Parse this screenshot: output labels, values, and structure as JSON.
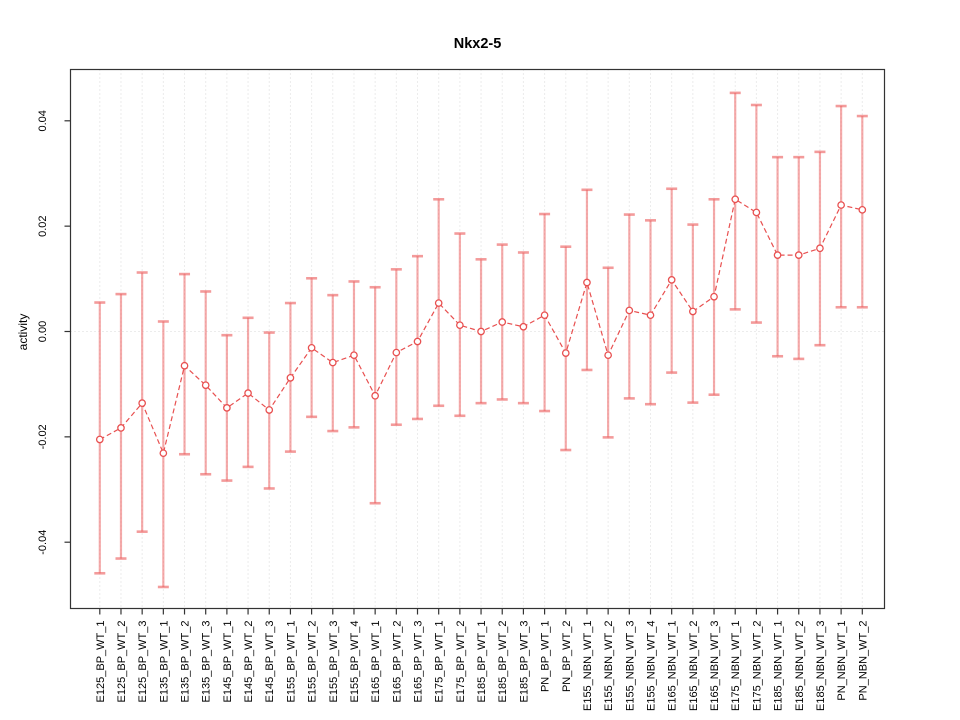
{
  "chart_data": {
    "type": "line",
    "subtype": "means-with-error-bars",
    "title": "Nkx2-5",
    "xlabel": "",
    "ylabel": "activity",
    "ylim": [
      -0.053,
      0.05
    ],
    "yticks": {
      "values": [
        -0.04,
        -0.02,
        0,
        0.02,
        0.04
      ],
      "labels": [
        "-0.04",
        "-0.02",
        "0.00",
        "0.02",
        "0.04"
      ]
    },
    "layout_hints": {
      "legend_position": "none",
      "grid_vertical": "dotted line at every category",
      "grid_horizontal": "dotted line at zero only",
      "x_tick_label_rotation_deg": 90,
      "y_tick_label_rotation_deg": 90,
      "connector_line_style": "dashed",
      "point_marker": "open-circle"
    },
    "categories": [
      "E125_BP_WT_1",
      "E125_BP_WT_2",
      "E125_BP_WT_3",
      "E135_BP_WT_1",
      "E135_BP_WT_2",
      "E135_BP_WT_3",
      "E145_BP_WT_1",
      "E145_BP_WT_2",
      "E145_BP_WT_3",
      "E155_BP_WT_1",
      "E155_BP_WT_2",
      "E155_BP_WT_3",
      "E155_BP_WT_4",
      "E165_BP_WT_1",
      "E165_BP_WT_2",
      "E165_BP_WT_3",
      "E175_BP_WT_1",
      "E175_BP_WT_2",
      "E185_BP_WT_1",
      "E185_BP_WT_2",
      "E185_BP_WT_3",
      "PN_BP_WT_1",
      "PN_BP_WT_2",
      "E155_NBN_WT_1",
      "E155_NBN_WT_2",
      "E155_NBN_WT_3",
      "E155_NBN_WT_4",
      "E165_NBN_WT_1",
      "E165_NBN_WT_2",
      "E165_NBN_WT_3",
      "E175_NBN_WT_1",
      "E175_NBN_WT_2",
      "E185_NBN_WT_1",
      "E185_NBN_WT_2",
      "E185_NBN_WT_3",
      "PN_NBN_WT_1",
      "PN_NBN_WT_2"
    ],
    "series": [
      {
        "name": "mean",
        "role": "center",
        "values": [
          -0.0205,
          -0.0183,
          -0.0136,
          -0.0231,
          -0.0065,
          -0.0102,
          -0.0145,
          -0.0117,
          -0.0149,
          -0.0088,
          -0.0031,
          -0.0059,
          -0.0045,
          -0.0122,
          -0.004,
          -0.0019,
          0.0054,
          0.0012,
          0,
          0.0018,
          0.0009,
          0.0031,
          -0.0041,
          0.0093,
          -0.0045,
          0.004,
          0.0031,
          0.0098,
          0.0038,
          0.0066,
          0.0251,
          0.0226,
          0.0145,
          0.0145,
          0.0158,
          0.024,
          0.0231
        ]
      },
      {
        "name": "upper",
        "role": "error-bar-top",
        "values": [
          0.0055,
          0.0071,
          0.0112,
          0.0019,
          0.0109,
          0.0076,
          -0.0007,
          0.0026,
          -0.0002,
          0.0054,
          0.0101,
          0.0069,
          0.0095,
          0.0084,
          0.0118,
          0.0143,
          0.0251,
          0.0186,
          0.0137,
          0.0165,
          0.015,
          0.0223,
          0.0161,
          0.0269,
          0.0121,
          0.0222,
          0.0211,
          0.0271,
          0.0203,
          0.0251,
          0.0453,
          0.043,
          0.0331,
          0.0331,
          0.0341,
          0.0428,
          0.0409
        ]
      },
      {
        "name": "lower",
        "role": "error-bar-bottom",
        "values": [
          -0.0459,
          -0.0431,
          -0.038,
          -0.0485,
          -0.0233,
          -0.0271,
          -0.0283,
          -0.0257,
          -0.0298,
          -0.0228,
          -0.0162,
          -0.0189,
          -0.0182,
          -0.0326,
          -0.0177,
          -0.0166,
          -0.0141,
          -0.016,
          -0.0136,
          -0.0129,
          -0.0136,
          -0.0151,
          -0.0225,
          -0.0073,
          -0.0201,
          -0.0127,
          -0.0138,
          -0.0078,
          -0.0135,
          -0.012,
          0.0042,
          0.0017,
          -0.0047,
          -0.0052,
          -0.0026,
          0.0046,
          0.0046
        ]
      }
    ],
    "colors": {
      "series": "#e85050",
      "error_bar": "#ee6666",
      "grid": "#d8d8d8",
      "axis": "#333333",
      "title": "#000000"
    }
  }
}
